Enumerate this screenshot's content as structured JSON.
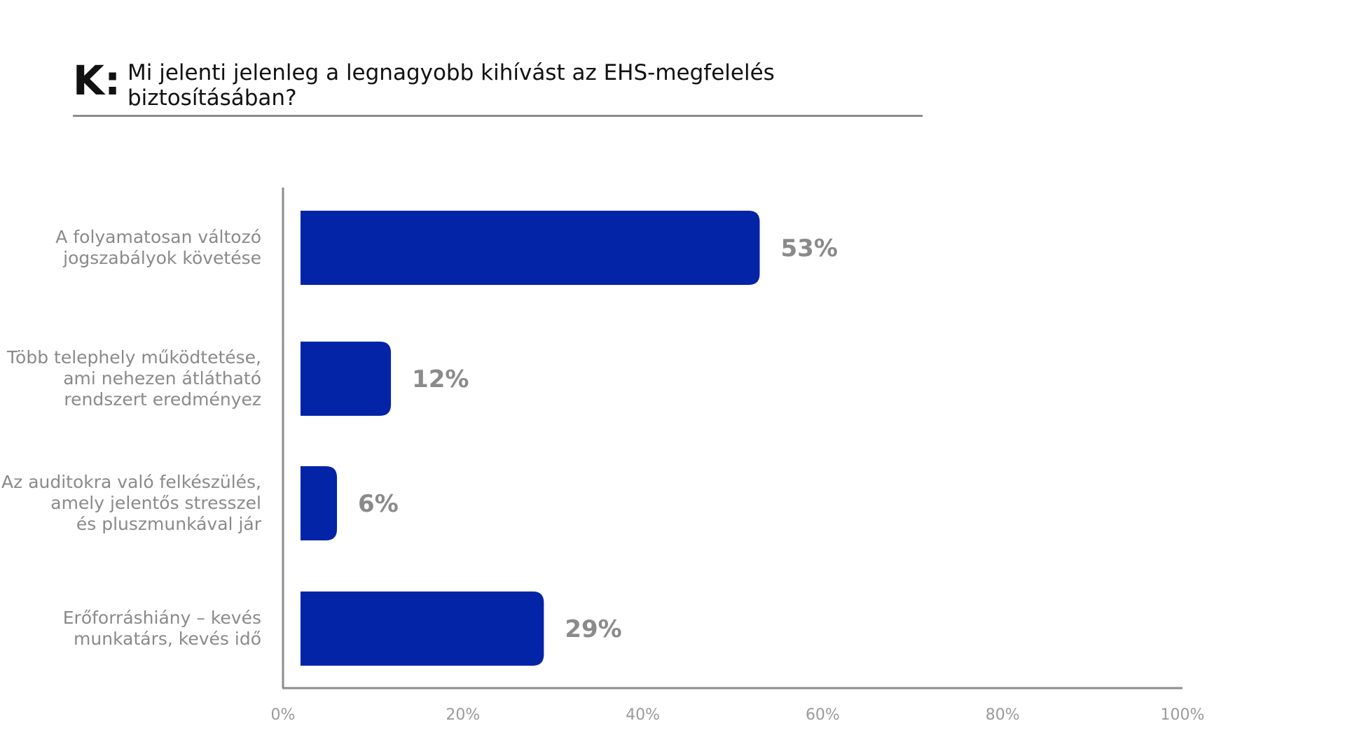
{
  "header": {
    "prefix": "K:",
    "question": "Mi jelenti jelenleg a legnagyobb kihívást az EHS-megfelelés biztosításában?"
  },
  "chart_data": {
    "type": "bar",
    "orientation": "horizontal",
    "categories": [
      [
        "A folyamatosan változó",
        "jogszabályok követése"
      ],
      [
        "Több telephely működtetése,",
        "ami nehezen átlátható",
        "rendszert eredményez"
      ],
      [
        "Az auditokra való felkészülés,",
        "amely jelentős stresszel",
        "és pluszmunkával jár"
      ],
      [
        "Erőforráshiány – kevés",
        "munkatárs, kevés idő"
      ]
    ],
    "values": [
      53,
      12,
      6,
      29
    ],
    "value_labels": [
      "53%",
      "12%",
      "6%",
      "29%"
    ],
    "xlim": [
      0,
      100
    ],
    "xticks": [
      0,
      20,
      40,
      60,
      80,
      100
    ],
    "xtick_labels": [
      "0%",
      "20%",
      "40%",
      "60%",
      "80%",
      "100%"
    ],
    "bar_color": "#0424A8",
    "grid": false,
    "legend": "none"
  }
}
